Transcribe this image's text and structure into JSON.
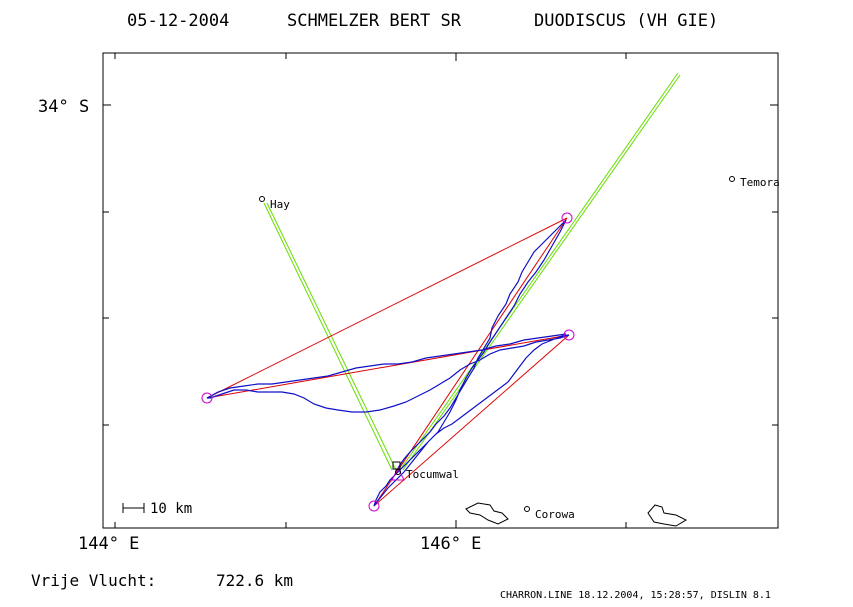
{
  "header": {
    "date": "05-12-2004",
    "pilot": "SCHMELZER BERT SR",
    "glider": "DUODISCUS (VH GIE)"
  },
  "axes": {
    "lat_label": "34° S",
    "lon_labels": [
      "144° E",
      "146° E"
    ]
  },
  "towns": [
    {
      "name": "Hay"
    },
    {
      "name": "Temora"
    },
    {
      "name": "Tocumwal"
    },
    {
      "name": "Corowa"
    }
  ],
  "scale": {
    "label": "10 km"
  },
  "footer": {
    "distance_label": "Vrije Vlucht:",
    "distance_value": "722.6 km",
    "credit": "CHARRON.LINE 18.12.2004, 15:28:57, DISLIN 8.1"
  },
  "colors": {
    "track": "#1010c8",
    "task_line": "#e00000",
    "alt_line": "#66dd00",
    "turnpoint": "#cc00cc",
    "frame": "#000000"
  }
}
